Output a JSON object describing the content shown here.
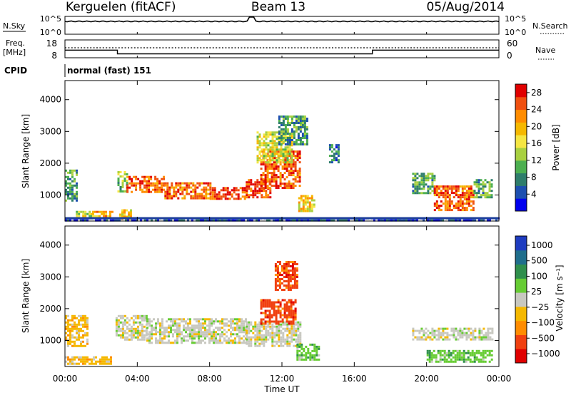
{
  "header": {
    "radar": "Kerguelen (fitACF)",
    "beam": "Beam 13",
    "date": "05/Aug/2014"
  },
  "params": {
    "nsky_label": "N.Sky",
    "nsky_ticks": [
      "10^5",
      "10^0"
    ],
    "nsearch_label": "N.Search",
    "nsearch_ticks": [
      "10^5",
      "10^0"
    ],
    "freq_label": "Freq.",
    "freq_unit": "[MHz]",
    "freq_ticks": [
      "18",
      "8"
    ],
    "nave_label": "Nave",
    "nave_ticks": [
      "60",
      "0"
    ],
    "cpid_label": "CPID",
    "cpid_value": "normal (fast) 151",
    "freq_series": [
      {
        "t": 0.0,
        "mhz": 12.3
      },
      {
        "t": 2.9,
        "mhz": 12.3
      },
      {
        "t": 2.9,
        "mhz": 10.2
      },
      {
        "t": 17.0,
        "mhz": 10.2
      },
      {
        "t": 17.0,
        "mhz": 12.3
      },
      {
        "t": 24.0,
        "mhz": 12.3
      }
    ]
  },
  "chart_data": [
    {
      "type": "heatmap",
      "quantity": "Power",
      "ylabel": "Slant Range [km]",
      "xlabel": "Time UT",
      "x_ticks": [
        "00:00",
        "04:00",
        "08:00",
        "12:00",
        "16:00",
        "20:00",
        "00:00"
      ],
      "xlim": [
        0,
        24
      ],
      "y_ticks": [
        "1000",
        "2000",
        "3000",
        "4000"
      ],
      "ylim": [
        180,
        4600
      ],
      "colorbar": {
        "label": "Power [dB]",
        "ticks": [
          "4",
          "8",
          "12",
          "16",
          "20",
          "24",
          "28"
        ],
        "range": [
          0,
          30
        ],
        "colors": [
          "#0000ee",
          "#1d4fb0",
          "#2e7d6b",
          "#4caf50",
          "#a8d040",
          "#f5e642",
          "#f5b800",
          "#ff8c00",
          "#f05010",
          "#e00000"
        ]
      },
      "regions": [
        {
          "t0": 0.0,
          "t1": 0.6,
          "r0": 800,
          "r1": 1800,
          "v": 10
        },
        {
          "t0": 0.6,
          "t1": 1.5,
          "r0": 300,
          "r1": 500,
          "v": 14
        },
        {
          "t0": 1.5,
          "t1": 2.6,
          "r0": 300,
          "r1": 500,
          "v": 20
        },
        {
          "t0": 3.0,
          "t1": 3.6,
          "r0": 250,
          "r1": 550,
          "v": 18
        },
        {
          "t0": 2.9,
          "t1": 3.4,
          "r0": 1100,
          "r1": 1750,
          "v": 12
        },
        {
          "t0": 3.4,
          "t1": 5.5,
          "r0": 1100,
          "r1": 1600,
          "v": 25
        },
        {
          "t0": 5.5,
          "t1": 8.0,
          "r0": 900,
          "r1": 1400,
          "v": 24
        },
        {
          "t0": 8.0,
          "t1": 10.0,
          "r0": 850,
          "r1": 1250,
          "v": 26
        },
        {
          "t0": 10.0,
          "t1": 11.4,
          "r0": 900,
          "r1": 1500,
          "v": 27
        },
        {
          "t0": 10.8,
          "t1": 13.0,
          "r0": 1200,
          "r1": 2400,
          "v": 25
        },
        {
          "t0": 10.6,
          "t1": 12.6,
          "r0": 2000,
          "r1": 3000,
          "v": 16
        },
        {
          "t0": 11.8,
          "t1": 13.4,
          "r0": 2600,
          "r1": 3500,
          "v": 9
        },
        {
          "t0": 12.9,
          "t1": 13.8,
          "r0": 500,
          "r1": 1000,
          "v": 18
        },
        {
          "t0": 14.6,
          "t1": 15.1,
          "r0": 2000,
          "r1": 2600,
          "v": 7
        },
        {
          "t0": 19.2,
          "t1": 20.4,
          "r0": 1050,
          "r1": 1700,
          "v": 10
        },
        {
          "t0": 20.4,
          "t1": 22.6,
          "r0": 500,
          "r1": 1300,
          "v": 25
        },
        {
          "t0": 22.6,
          "t1": 23.6,
          "r0": 900,
          "r1": 1500,
          "v": 10
        },
        {
          "t0": 0.0,
          "t1": 24.0,
          "r0": 180,
          "r1": 300,
          "v": 4
        }
      ]
    },
    {
      "type": "heatmap",
      "quantity": "Velocity",
      "ylabel": "Slant Range [km]",
      "xlabel": "Time UT",
      "x_ticks": [
        "00:00",
        "04:00",
        "08:00",
        "12:00",
        "16:00",
        "20:00",
        "00:00"
      ],
      "xlim": [
        0,
        24
      ],
      "y_ticks": [
        "1000",
        "2000",
        "3000",
        "4000"
      ],
      "ylim": [
        180,
        4600
      ],
      "colorbar": {
        "label": "Velocity [m s⁻¹]",
        "ticks": [
          "1000",
          "500",
          "100",
          "25",
          "−25",
          "−100",
          "−500",
          "−1000"
        ],
        "colors": [
          "#1e3cc0",
          "#1f6e8c",
          "#2f8f4c",
          "#66cc33",
          "#c8c8c0",
          "#f5b800",
          "#ff8c00",
          "#f04010",
          "#e00000"
        ]
      },
      "regions": [
        {
          "t0": 0.0,
          "t1": 1.2,
          "r0": 800,
          "r1": 1800,
          "v": "-100"
        },
        {
          "t0": 0.0,
          "t1": 2.5,
          "r0": 250,
          "r1": 500,
          "v": "-100"
        },
        {
          "t0": 2.8,
          "t1": 4.5,
          "r0": 1000,
          "r1": 1800,
          "v": "25"
        },
        {
          "t0": 4.5,
          "t1": 10.0,
          "r0": 900,
          "r1": 1700,
          "v": "25"
        },
        {
          "t0": 10.0,
          "t1": 13.0,
          "r0": 850,
          "r1": 1600,
          "v": "25"
        },
        {
          "t0": 10.8,
          "t1": 12.8,
          "r0": 1500,
          "r1": 2300,
          "v": "-500"
        },
        {
          "t0": 11.6,
          "t1": 12.8,
          "r0": 2600,
          "r1": 3500,
          "v": "-500"
        },
        {
          "t0": 12.8,
          "t1": 14.0,
          "r0": 400,
          "r1": 900,
          "v": "100"
        },
        {
          "t0": 19.2,
          "t1": 23.6,
          "r0": 1000,
          "r1": 1400,
          "v": "25"
        },
        {
          "t0": 20.0,
          "t1": 23.6,
          "r0": 300,
          "r1": 700,
          "v": "100"
        }
      ]
    }
  ]
}
